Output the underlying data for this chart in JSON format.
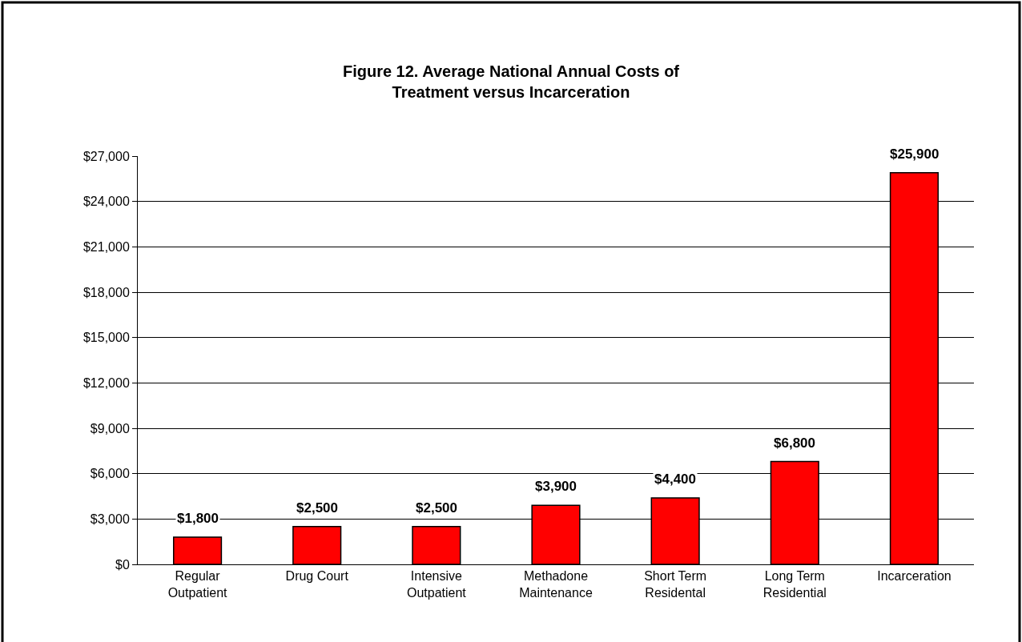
{
  "chart_data": {
    "type": "bar",
    "title": "Figure 12. Average National Annual Costs of\nTreatment versus Incarceration",
    "categories": [
      "Regular\nOutpatient",
      "Drug Court",
      "Intensive\nOutpatient",
      "Methadone\nMaintenance",
      "Short Term\nResidental",
      "Long Term\nResidential",
      "Incarceration"
    ],
    "values": [
      1800,
      2500,
      2500,
      3900,
      4400,
      6800,
      25900
    ],
    "value_labels": [
      "$1,800",
      "$2,500",
      "$2,500",
      "$3,900",
      "$4,400",
      "$6,800",
      "$25,900"
    ],
    "color": "#ff0000",
    "ylim": [
      0,
      27000
    ],
    "yticks": [
      {
        "value": 0,
        "label": "$0"
      },
      {
        "value": 3000,
        "label": "$3,000"
      },
      {
        "value": 6000,
        "label": "$6,000"
      },
      {
        "value": 9000,
        "label": "$9,000"
      },
      {
        "value": 12000,
        "label": "$12,000"
      },
      {
        "value": 15000,
        "label": "$15,000"
      },
      {
        "value": 18000,
        "label": "$18,000"
      },
      {
        "value": 21000,
        "label": "$21,000"
      },
      {
        "value": 24000,
        "label": "$24,000"
      },
      {
        "value": 27000,
        "label": "$27,000"
      }
    ],
    "grid": "y"
  }
}
